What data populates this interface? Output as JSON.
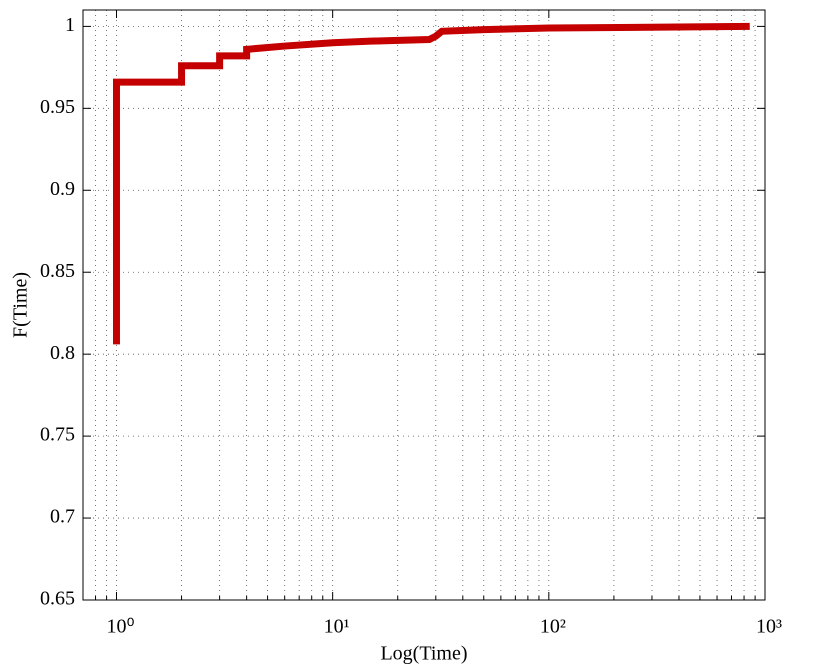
{
  "chart_data": {
    "type": "line",
    "x_label": "Log(Time)",
    "y_label": "F(Time)",
    "x_scale": "log",
    "xlim": [
      0.7,
      1000
    ],
    "xticks": [
      {
        "value": 1,
        "label": "10⁰"
      },
      {
        "value": 10,
        "label": "10¹"
      },
      {
        "value": 100,
        "label": "10²"
      },
      {
        "value": 1000,
        "label": "10³"
      }
    ],
    "xminorticks": [
      0.8,
      0.9,
      2,
      3,
      4,
      5,
      6,
      7,
      8,
      9,
      20,
      30,
      40,
      50,
      60,
      70,
      80,
      90,
      200,
      300,
      400,
      500,
      600,
      700,
      800,
      900
    ],
    "ylim": [
      0.65,
      1.01
    ],
    "yticks": [
      0.65,
      0.7,
      0.75,
      0.8,
      0.85,
      0.9,
      0.95,
      1
    ],
    "grid": true,
    "series": [
      {
        "color": "#c40000",
        "x": [
          1,
          1,
          2,
          2,
          3,
          3,
          4,
          4,
          6,
          10,
          15,
          28,
          30,
          32,
          50,
          100,
          850
        ],
        "values": [
          0.806,
          0.966,
          0.966,
          0.976,
          0.976,
          0.982,
          0.982,
          0.986,
          0.988,
          0.99,
          0.991,
          0.992,
          0.994,
          0.997,
          0.998,
          0.999,
          1.0
        ]
      }
    ]
  }
}
